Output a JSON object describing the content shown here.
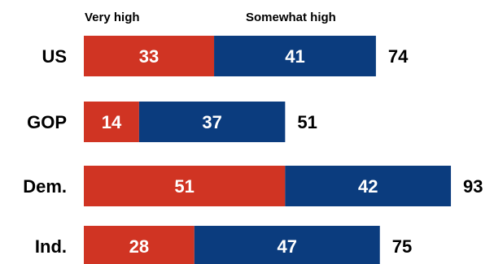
{
  "chart_data": {
    "type": "bar",
    "orientation": "horizontal",
    "stacked": true,
    "categories": [
      "US",
      "GOP",
      "Dem.",
      "Ind."
    ],
    "series": [
      {
        "name": "Very high",
        "color": "#d03423",
        "values": [
          33,
          14,
          51,
          28
        ]
      },
      {
        "name": "Somewhat high",
        "color": "#0b3c7e",
        "values": [
          41,
          37,
          42,
          47
        ]
      }
    ],
    "totals": [
      74,
      51,
      93,
      75
    ],
    "legend_position": "top",
    "grid": false
  }
}
